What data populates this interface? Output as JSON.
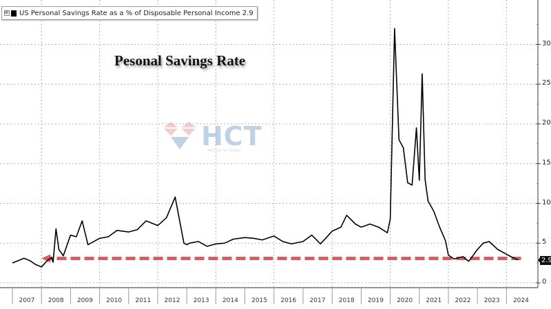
{
  "legend": {
    "label": "US Personal Savings Rate as a % of Disposable Personal Income 2.9",
    "expand_glyph": "⊞"
  },
  "title": "Pesonal Savings Rate",
  "watermark": {
    "logo_text": "HCT",
    "subtitle": "HIEU QUA THI TRUONG"
  },
  "last_value_badge": "2.9",
  "colors": {
    "line": "#000000",
    "arrow": "#d9484c",
    "grid": "#b0b0b0",
    "axis": "#777777"
  },
  "chart_data": {
    "type": "line",
    "title": "Pesonal Savings Rate",
    "series_name": "US Personal Savings Rate as a % of Disposable Personal Income",
    "last_value": 2.9,
    "xlabel": "",
    "ylabel": "",
    "ylim": [
      -1,
      33
    ],
    "yticks": [
      0,
      5,
      10,
      15,
      20,
      25,
      30
    ],
    "xticks": [
      "2007",
      "2008",
      "2009",
      "2010",
      "2011",
      "2012",
      "2013",
      "2014",
      "2015",
      "2016",
      "2017",
      "2018",
      "2019",
      "2020",
      "2021",
      "2022",
      "2023",
      "2024"
    ],
    "grid": true,
    "legend_position": "top-left",
    "x": [
      2007.0,
      2007.2,
      2007.4,
      2007.6,
      2007.8,
      2008.0,
      2008.2,
      2008.35,
      2008.4,
      2008.5,
      2008.6,
      2008.75,
      2009.0,
      2009.2,
      2009.4,
      2009.6,
      2009.8,
      2010.0,
      2010.3,
      2010.6,
      2011.0,
      2011.3,
      2011.6,
      2012.0,
      2012.3,
      2012.6,
      2012.9,
      2013.0,
      2013.1,
      2013.4,
      2013.7,
      2014.0,
      2014.3,
      2014.6,
      2015.0,
      2015.3,
      2015.6,
      2016.0,
      2016.3,
      2016.6,
      2017.0,
      2017.3,
      2017.6,
      2018.0,
      2018.3,
      2018.5,
      2018.8,
      2019.0,
      2019.3,
      2019.6,
      2019.9,
      2020.0,
      2020.15,
      2020.3,
      2020.45,
      2020.6,
      2020.75,
      2020.9,
      2021.0,
      2021.1,
      2021.2,
      2021.3,
      2021.5,
      2021.7,
      2021.9,
      2022.0,
      2022.2,
      2022.5,
      2022.7,
      2023.0,
      2023.2,
      2023.4,
      2023.7,
      2024.0,
      2024.2,
      2024.4
    ],
    "values": [
      2.5,
      2.8,
      3.1,
      2.8,
      2.3,
      2.0,
      2.8,
      3.2,
      2.6,
      6.8,
      4.2,
      3.4,
      6.0,
      5.8,
      7.8,
      4.8,
      5.2,
      5.6,
      5.8,
      6.6,
      6.4,
      6.7,
      7.8,
      7.2,
      8.2,
      10.8,
      5.0,
      4.8,
      5.0,
      5.2,
      4.6,
      4.9,
      5.0,
      5.5,
      5.7,
      5.6,
      5.4,
      5.9,
      5.2,
      4.9,
      5.2,
      6.0,
      4.9,
      6.5,
      7.0,
      8.5,
      7.4,
      7.0,
      7.4,
      7.0,
      6.3,
      8.0,
      32.0,
      18.0,
      17.0,
      12.6,
      12.3,
      19.5,
      12.9,
      26.3,
      13.0,
      10.3,
      9.0,
      7.0,
      5.3,
      3.5,
      3.0,
      3.3,
      2.7,
      4.2,
      5.0,
      5.2,
      4.2,
      3.6,
      3.2,
      2.9
    ],
    "annotations": [
      {
        "type": "arrow",
        "from_x": 2024.5,
        "to_x": 2008.0,
        "y": 2.9,
        "style": "dashed",
        "color": "#d9484c"
      }
    ]
  }
}
